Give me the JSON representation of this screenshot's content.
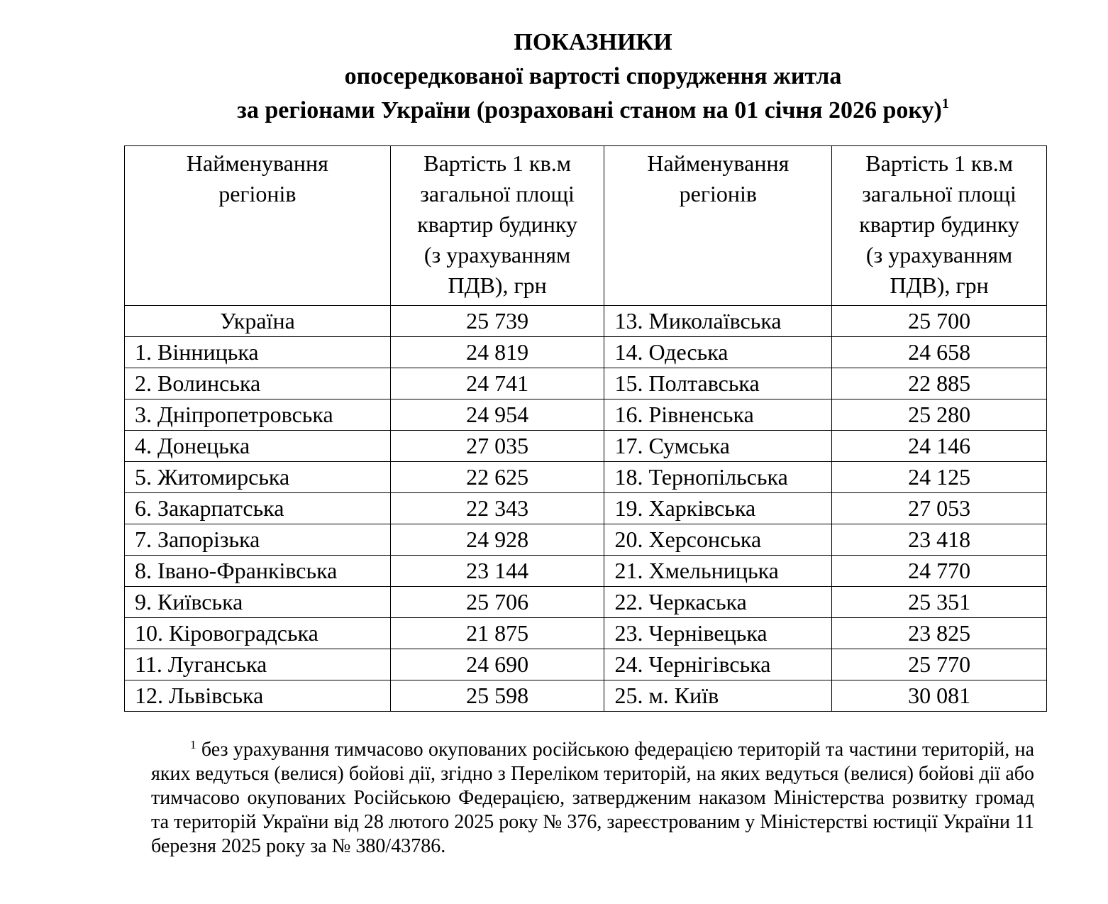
{
  "title": {
    "lines": [
      "ПОКАЗНИКИ",
      "опосередкованої вартості спорудження житла",
      "за регіонами України (розраховані станом на 01 січня 2026 року)"
    ],
    "superscript": "1"
  },
  "table": {
    "header": [
      [
        "Найменування",
        "регіонів"
      ],
      [
        "Вартість 1 кв.м",
        "загальної площі",
        "квартир будинку",
        "(з урахуванням",
        "ПДВ), грн"
      ],
      [
        "Найменування",
        "регіонів"
      ],
      [
        "Вартість 1 кв.м",
        "загальної площі",
        "квартир будинку",
        "(з урахуванням",
        "ПДВ), грн"
      ]
    ],
    "rows": [
      [
        "Україна",
        "25 739",
        "13. Миколаївська",
        "25 700"
      ],
      [
        "1. Вінницька",
        "24 819",
        "14. Одеська",
        "24 658"
      ],
      [
        "2. Волинська",
        "24 741",
        "15. Полтавська",
        "22 885"
      ],
      [
        "3. Дніпропетровська",
        "24 954",
        "16. Рівненська",
        "25 280"
      ],
      [
        "4. Донецька",
        "27 035",
        "17. Сумська",
        "24 146"
      ],
      [
        "5. Житомирська",
        "22 625",
        "18. Тернопільська",
        "24 125"
      ],
      [
        "6. Закарпатська",
        "22 343",
        "19. Харківська",
        "27 053"
      ],
      [
        "7. Запорізька",
        "24 928",
        "20. Херсонська",
        "23 418"
      ],
      [
        "8. Івано-Франківська",
        "23 144",
        "21. Хмельницька",
        "24 770"
      ],
      [
        "9. Київська",
        "25 706",
        "22. Черкаська",
        "25 351"
      ],
      [
        "10. Кіровоградська",
        "21 875",
        "23. Чернівецька",
        "23 825"
      ],
      [
        "11. Луганська",
        "24 690",
        "24. Чернігівська",
        "25 770"
      ],
      [
        "12. Львівська",
        "25 598",
        "25. м. Київ",
        "30 081"
      ]
    ]
  },
  "footnote": {
    "marker": "1",
    "text": "без урахування тимчасово окупованих російською федерацією територій та частини територій, на яких ведуться (велися) бойові дії, згідно з Переліком територій, на яких ведуться (велися) бойові дії або тимчасово окупованих Російською Федерацією, затвердженим наказом Міністерства розвитку громад та територій України від 28 лютого 2025 року № 376, зареєстрованим у Міністерстві юстиції України 11 березня 2025 року за № 380/43786."
  }
}
